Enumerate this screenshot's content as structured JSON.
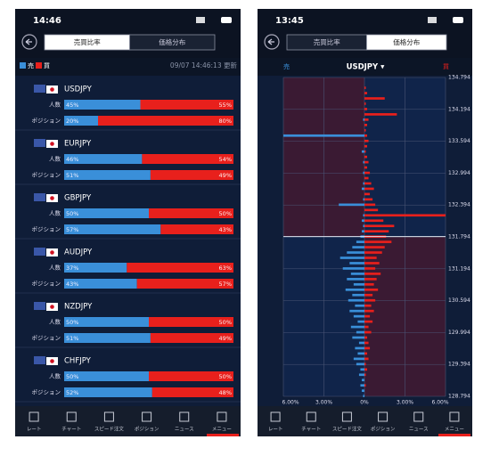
{
  "tabs": [
    "売買比率",
    "価格分布"
  ],
  "nav": [
    "レート",
    "チャート",
    "スピード注文",
    "ポジション",
    "ニュース",
    "メニュー"
  ],
  "left": {
    "status_time": "14:46",
    "legend": {
      "sell": "売",
      "buy": "買"
    },
    "updated": "09/07 14:46:13 更新",
    "row_labels": {
      "people": "人数",
      "position": "ポジション"
    },
    "pairs": [
      {
        "name": "USDJPY",
        "people": {
          "sell": {
            "value": 45,
            "label": "45%"
          },
          "buy": {
            "value": 55,
            "label": "55%"
          }
        },
        "position": {
          "sell": {
            "value": 20,
            "label": "20%"
          },
          "buy": {
            "value": 80,
            "label": "80%"
          }
        }
      },
      {
        "name": "EURJPY",
        "people": {
          "sell": {
            "value": 46,
            "label": "46%"
          },
          "buy": {
            "value": 54,
            "label": "54%"
          }
        },
        "position": {
          "sell": {
            "value": 51,
            "label": "51%"
          },
          "buy": {
            "value": 49,
            "label": "49%"
          }
        }
      },
      {
        "name": "GBPJPY",
        "people": {
          "sell": {
            "value": 50,
            "label": "50%"
          },
          "buy": {
            "value": 50,
            "label": "50%"
          }
        },
        "position": {
          "sell": {
            "value": 57,
            "label": "57%"
          },
          "buy": {
            "value": 43,
            "label": "43%"
          }
        }
      },
      {
        "name": "AUDJPY",
        "people": {
          "sell": {
            "value": 37,
            "label": "37%"
          },
          "buy": {
            "value": 63,
            "label": "63%"
          }
        },
        "position": {
          "sell": {
            "value": 43,
            "label": "43%"
          },
          "buy": {
            "value": 57,
            "label": "57%"
          }
        }
      },
      {
        "name": "NZDJPY",
        "people": {
          "sell": {
            "value": 50,
            "label": "50%"
          },
          "buy": {
            "value": 50,
            "label": "50%"
          }
        },
        "position": {
          "sell": {
            "value": 51,
            "label": "51%"
          },
          "buy": {
            "value": 49,
            "label": "49%"
          }
        }
      },
      {
        "name": "CHFJPY",
        "people": {
          "sell": {
            "value": 50,
            "label": "50%"
          },
          "buy": {
            "value": 50,
            "label": "50%"
          }
        },
        "position": {
          "sell": {
            "value": 52,
            "label": "52%"
          },
          "buy": {
            "value": 48,
            "label": "48%"
          }
        }
      }
    ]
  },
  "right": {
    "status_time": "13:45",
    "sell_label": "売",
    "symbol": "USDJPY ▾",
    "buy_label": "買",
    "distribution": {
      "type": "butterfly-bar",
      "ylim": [
        128.794,
        134.794
      ],
      "yticks": [
        134.794,
        134.194,
        133.594,
        132.994,
        132.394,
        131.794,
        131.194,
        130.594,
        129.994,
        129.394,
        128.794
      ],
      "xlim": [
        -6,
        6
      ],
      "xticks": [
        {
          "value": -6,
          "label": "6.00%"
        },
        {
          "value": -3,
          "label": "3.00%"
        },
        {
          "value": 0,
          "label": "0%"
        },
        {
          "value": 3,
          "label": "3.00%"
        },
        {
          "value": 6,
          "label": "6.00%"
        }
      ],
      "current_price": 131.8,
      "sell_color": "#3a8fd9",
      "buy_color": "#e8201c",
      "prices": [
        128.8,
        128.9,
        129.0,
        129.1,
        129.2,
        129.3,
        129.4,
        129.5,
        129.6,
        129.7,
        129.8,
        129.9,
        130.0,
        130.1,
        130.2,
        130.3,
        130.4,
        130.5,
        130.6,
        130.7,
        130.8,
        130.9,
        131.0,
        131.1,
        131.2,
        131.3,
        131.4,
        131.5,
        131.6,
        131.7,
        131.8,
        131.9,
        132.0,
        132.1,
        132.2,
        132.3,
        132.4,
        132.5,
        132.6,
        132.7,
        132.8,
        132.9,
        133.0,
        133.1,
        133.2,
        133.3,
        133.4,
        133.5,
        133.6,
        133.7,
        133.8,
        133.9,
        134.0,
        134.1,
        134.2,
        134.3,
        134.4,
        134.5,
        134.6,
        134.7
      ],
      "sell": [
        0.1,
        0.2,
        0.3,
        0.2,
        0.4,
        0.3,
        0.6,
        0.8,
        0.5,
        0.7,
        0.4,
        0.9,
        0.6,
        1.0,
        0.5,
        0.8,
        1.1,
        0.7,
        1.2,
        0.9,
        1.4,
        0.8,
        1.3,
        1.0,
        1.6,
        1.1,
        1.8,
        1.3,
        0.9,
        0.6,
        0.3,
        0.2,
        0.1,
        0.2,
        0.1,
        0,
        1.9,
        0.1,
        0,
        0.2,
        0.1,
        0,
        0.1,
        0,
        0.1,
        0,
        0.2,
        0,
        0,
        6.0,
        0,
        0,
        0.1,
        0,
        0,
        0,
        0,
        0,
        0,
        0
      ],
      "buy": [
        0,
        0,
        0.1,
        0,
        0.1,
        0.2,
        0.1,
        0.3,
        0.2,
        0.4,
        0.3,
        0.2,
        0.5,
        0.3,
        0.6,
        0.4,
        0.7,
        0.5,
        0.8,
        0.6,
        1.0,
        0.7,
        0.9,
        1.2,
        0.8,
        1.1,
        0.9,
        1.3,
        1.5,
        2.0,
        1.6,
        1.8,
        2.2,
        1.4,
        6.0,
        1.0,
        0.8,
        0.6,
        0.4,
        0.7,
        0.5,
        0.3,
        0.4,
        0.2,
        0.3,
        0.2,
        0.1,
        0.2,
        0.3,
        0.2,
        0.1,
        0.2,
        0.3,
        2.4,
        0.2,
        0.1,
        1.5,
        0.2,
        0.1,
        0
      ]
    }
  }
}
